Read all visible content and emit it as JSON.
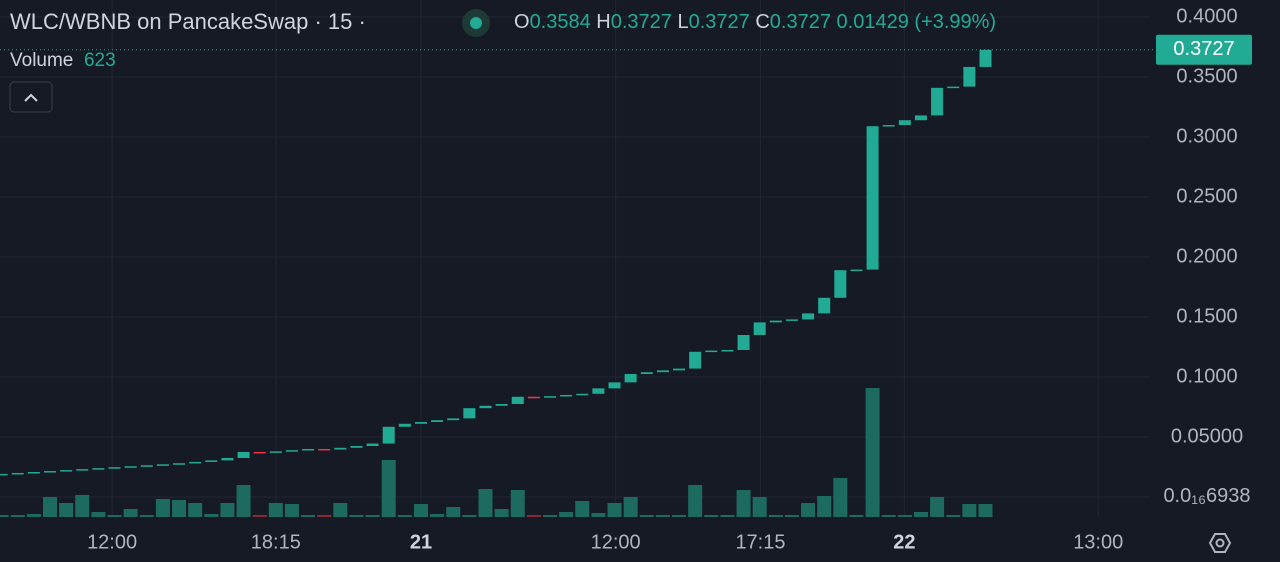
{
  "chart_data": {
    "type": "candlestick",
    "title": "WLC/WBNB on PancakeSwap · 15 ·",
    "ohlc_legend": {
      "o_label": "O",
      "o": "0.3584",
      "h_label": "H",
      "h": "0.3727",
      "l_label": "L",
      "l": "0.3727",
      "c_label": "C",
      "c": "0.3727",
      "change": "0.01429 (+3.99%)"
    },
    "open": [
      0.0188,
      0.0192,
      0.02,
      0.0208,
      0.0216,
      0.0224,
      0.0232,
      0.024,
      0.0248,
      0.0256,
      0.0264,
      0.0272,
      0.0281,
      0.0292,
      0.0305,
      0.0325,
      0.0375,
      0.037,
      0.038,
      0.039,
      0.04,
      0.0395,
      0.041,
      0.0425,
      0.0445,
      0.0585,
      0.061,
      0.0625,
      0.064,
      0.0655,
      0.074,
      0.076,
      0.0775,
      0.0835,
      0.083,
      0.084,
      0.085,
      0.086,
      0.0905,
      0.0955,
      0.1025,
      0.104,
      0.1055,
      0.107,
      0.121,
      0.122,
      0.1225,
      0.135,
      0.1455,
      0.147,
      0.148,
      0.153,
      0.166,
      0.189,
      0.1895,
      0.309,
      0.31,
      0.314,
      0.318,
      0.341,
      0.342,
      0.3584
    ],
    "close": [
      0.0192,
      0.02,
      0.0208,
      0.0216,
      0.0224,
      0.0232,
      0.024,
      0.0248,
      0.0256,
      0.0264,
      0.0272,
      0.0281,
      0.0292,
      0.0305,
      0.0325,
      0.0375,
      0.037,
      0.038,
      0.039,
      0.04,
      0.0395,
      0.041,
      0.0425,
      0.0445,
      0.0585,
      0.061,
      0.0625,
      0.064,
      0.0655,
      0.074,
      0.076,
      0.0775,
      0.0835,
      0.083,
      0.084,
      0.085,
      0.086,
      0.0905,
      0.0955,
      0.1025,
      0.104,
      0.1055,
      0.107,
      0.121,
      0.122,
      0.1225,
      0.135,
      0.1455,
      0.147,
      0.148,
      0.153,
      0.166,
      0.189,
      0.1895,
      0.309,
      0.31,
      0.314,
      0.318,
      0.341,
      0.342,
      0.3584,
      0.3727
    ],
    "color_up": "#22ab94",
    "color_down": "#f23645",
    "volume": {
      "name": "Volume",
      "last": 623,
      "values": [
        96,
        96,
        144,
        960,
        672,
        1056,
        240,
        96,
        384,
        96,
        864,
        816,
        672,
        144,
        672,
        1536,
        96,
        672,
        624,
        96,
        96,
        672,
        96,
        96,
        2736,
        96,
        624,
        144,
        480,
        96,
        1344,
        384,
        1296,
        96,
        96,
        240,
        768,
        192,
        672,
        960,
        96,
        96,
        96,
        1536,
        96,
        96,
        1296,
        960,
        96,
        96,
        672,
        1008,
        1872,
        96,
        6192,
        96,
        96,
        240,
        960,
        96,
        623,
        623
      ],
      "color_up": "#1d6b60",
      "color_down": "#8c2a33"
    },
    "last_price": 0.3727,
    "ylim": [
      -0.0167,
      0.4142
    ],
    "yticks": [
      {
        "value": 0.4,
        "label": "0.4000"
      },
      {
        "value": 0.35,
        "label": "0.3500"
      },
      {
        "value": 0.3,
        "label": "0.3000"
      },
      {
        "value": 0.25,
        "label": "0.2500"
      },
      {
        "value": 0.2,
        "label": "0.2000"
      },
      {
        "value": 0.15,
        "label": "0.1500"
      },
      {
        "value": 0.1,
        "label": "0.1000"
      },
      {
        "value": 0.05,
        "label": "0.05000"
      },
      {
        "value": 6.938e-17,
        "label": "0.0₁₆6938"
      }
    ],
    "xlim": [
      -0.1,
      71.2
    ],
    "xticks": [
      {
        "value": 6.85,
        "label": "12:00"
      },
      {
        "value": 17.0,
        "label": "18:15"
      },
      {
        "value": 26.0,
        "label": "21"
      },
      {
        "value": 38.07,
        "label": "12:00"
      },
      {
        "value": 47.05,
        "label": "17:15"
      },
      {
        "value": 55.97,
        "label": "22"
      },
      {
        "value": 67.99,
        "label": "13:00"
      }
    ],
    "grid": true
  }
}
